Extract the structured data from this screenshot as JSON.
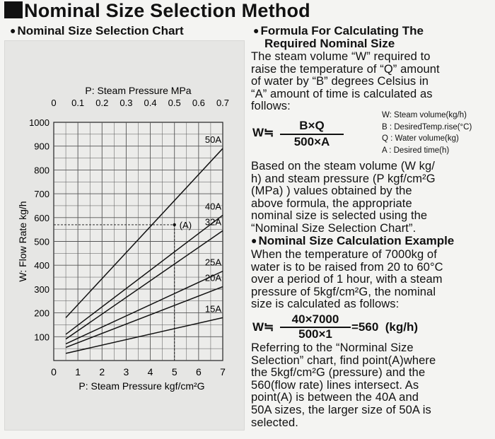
{
  "title": "Nominal Size Selection Method",
  "chart_heading": "Nominal Size Selection Chart",
  "formula_heading_line1": "Formula For Calculating The",
  "formula_heading_line2": "Required Nominal Size",
  "intro_lines": [
    "The steam volume “W” required to",
    "raise the temperature of “Q” amount",
    "of water by “B” degrees Celsius in",
    "“A” amount of time is calculated as",
    "follows:"
  ],
  "formula": {
    "lhs": "W≒",
    "numerator": "B×Q",
    "denominator": "500×A",
    "legend": [
      "W: Steam volume(kg/h)",
      "B : DesiredTemp.rise(°C)",
      "Q : Water volume(kg)",
      "A : Desired time(h)"
    ]
  },
  "selection_lines": [
    "Based on the steam volume (W kg/",
    "h) and steam pressure (P kgf/cm²G",
    "(MPa) ) values obtained by the",
    "above formula, the appropriate",
    "nominal size is selected using the",
    "“Nominal Size Selection Chart”."
  ],
  "example_heading": "Nominal Size Calculation Example",
  "example_lines": [
    "When the temperature of 7000kg of",
    "water is to be raised from 20 to 60°C",
    "over a period of 1 hour, with a steam",
    "pressure of 5kgf/cm²G, the nominal",
    "size is calculated as follows:"
  ],
  "example_formula": {
    "lhs": "W≒",
    "numerator": "40×7000",
    "denominator": "500×1",
    "result": "=560  (kg/h)"
  },
  "conclusion_lines": [
    "Referring to the “Norminal Size",
    "Selection” chart, find point(A)where",
    "the 5kgf/cm²G (pressure) and the",
    "560(flow rate) lines intersect. As",
    "point(A) is between the 40A and",
    "50A sizes, the larger size of 50A is",
    "selected."
  ],
  "chart_data": {
    "type": "line",
    "top_axis_label": "P: Steam Pressure MPa",
    "top_ticks": [
      "0",
      "0.1",
      "0.2",
      "0.3",
      "0.4",
      "0.5",
      "0.6",
      "0.7"
    ],
    "xlabel": "P: Steam Pressure kgf/cm²G",
    "x_ticks": [
      0,
      1,
      2,
      3,
      4,
      5,
      6,
      7
    ],
    "ylabel": "W: Flow Rate kg/h",
    "y_ticks": [
      100,
      200,
      300,
      400,
      500,
      600,
      700,
      800,
      900,
      1000
    ],
    "xlim": [
      0,
      7
    ],
    "ylim": [
      0,
      1000
    ],
    "grid": true,
    "series": [
      {
        "name": "50A",
        "x": [
          0.5,
          7
        ],
        "y": [
          180,
          890
        ]
      },
      {
        "name": "40A",
        "x": [
          0.5,
          7
        ],
        "y": [
          110,
          610
        ]
      },
      {
        "name": "32A",
        "x": [
          0.5,
          7
        ],
        "y": [
          90,
          545
        ]
      },
      {
        "name": "25A",
        "x": [
          0.5,
          7
        ],
        "y": [
          70,
          375
        ]
      },
      {
        "name": "20A",
        "x": [
          0.5,
          7
        ],
        "y": [
          55,
          310
        ]
      },
      {
        "name": "15A",
        "x": [
          0.5,
          7
        ],
        "y": [
          30,
          180
        ]
      }
    ],
    "point": {
      "label": "(A)",
      "x": 5,
      "y": 570
    }
  }
}
